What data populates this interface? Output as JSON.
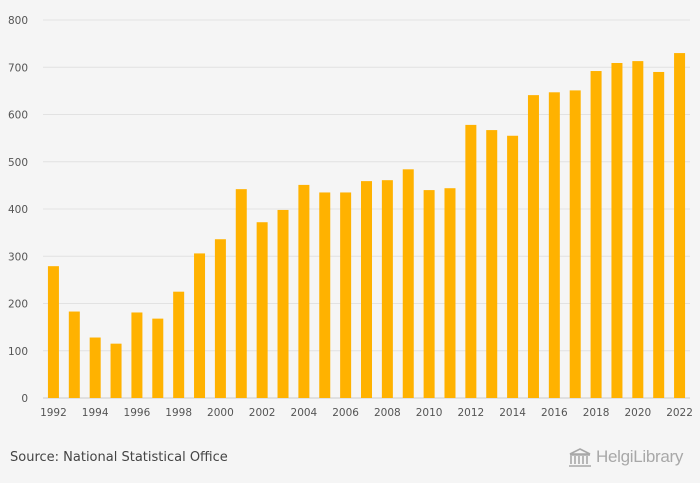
{
  "chart_data": {
    "type": "bar",
    "categories": [
      "1992",
      "1993",
      "1994",
      "1995",
      "1996",
      "1997",
      "1998",
      "1999",
      "2000",
      "2001",
      "2002",
      "2003",
      "2004",
      "2005",
      "2006",
      "2007",
      "2008",
      "2009",
      "2010",
      "2011",
      "2012",
      "2013",
      "2014",
      "2015",
      "2016",
      "2017",
      "2018",
      "2019",
      "2020",
      "2021",
      "2022"
    ],
    "x_tick_labels": [
      "1992",
      "1994",
      "1996",
      "1998",
      "2000",
      "2002",
      "2004",
      "2006",
      "2008",
      "2010",
      "2012",
      "2014",
      "2016",
      "2018",
      "2020",
      "2022"
    ],
    "values": [
      279,
      183,
      128,
      115,
      181,
      168,
      225,
      306,
      336,
      442,
      372,
      398,
      451,
      435,
      435,
      459,
      461,
      484,
      440,
      444,
      578,
      567,
      555,
      641,
      647,
      651,
      692,
      709,
      713,
      690,
      730
    ],
    "y_ticks": [
      0,
      100,
      200,
      300,
      400,
      500,
      600,
      700,
      800
    ],
    "ylim": [
      0,
      800
    ],
    "grid": true,
    "bar_color": "#FFB200",
    "title": "",
    "xlabel": "",
    "ylabel": ""
  },
  "footer": {
    "source": "Source: National Statistical Office",
    "logo_text": "HelgiLibrary"
  },
  "colors": {
    "background": "#f5f5f5",
    "grid": "#e2e2e2",
    "bar": "#FFB200",
    "axis_text": "#555555",
    "logo": "#a8a8a8"
  }
}
